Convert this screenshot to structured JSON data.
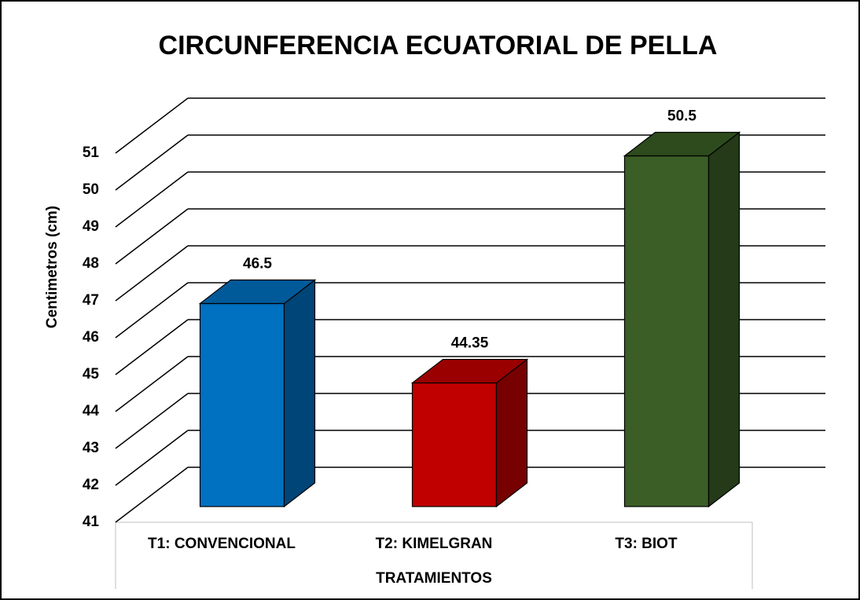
{
  "chart_data": {
    "type": "bar3d",
    "title": "CIRCUNFERENCIA ECUATORIAL DE PELLA",
    "x_label": "TRATAMIENTOS",
    "y_label": "Centimetros (cm)",
    "categories": [
      "T1: CONVENCIONAL",
      "T2: KIMELGRAN",
      "T3: BIOT"
    ],
    "values": [
      46.5,
      44.35,
      50.5
    ],
    "colors": [
      "#0070c0",
      "#c00000",
      "#3a5e26"
    ],
    "ylim": [
      41,
      51
    ],
    "yticks": [
      41,
      42,
      43,
      44,
      45,
      46,
      47,
      48,
      49,
      50,
      51
    ],
    "grid": true
  }
}
